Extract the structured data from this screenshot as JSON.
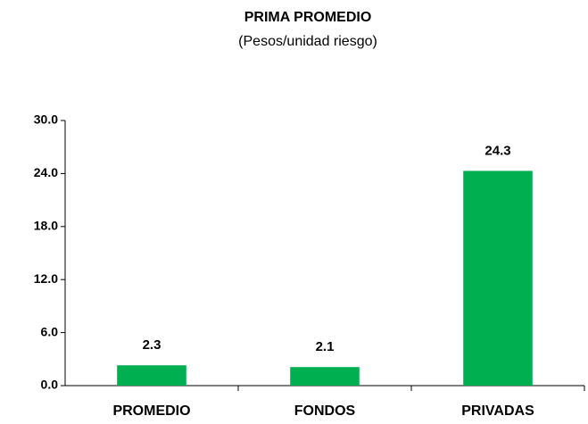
{
  "chart_data": {
    "type": "bar",
    "title": "PRIMA PROMEDIO",
    "subtitle": "(Pesos/unidad riesgo)",
    "categories": [
      "PROMEDIO",
      "FONDOS",
      "PRIVADAS"
    ],
    "values": [
      2.3,
      2.1,
      24.3
    ],
    "color": "#00b050",
    "ylim": [
      0,
      30
    ],
    "yticks": [
      {
        "value": 0,
        "label": "0.0"
      },
      {
        "value": 6,
        "label": "6.0"
      },
      {
        "value": 12,
        "label": "12.0"
      },
      {
        "value": 18,
        "label": "18.0"
      },
      {
        "value": 24,
        "label": "24.0"
      },
      {
        "value": 30,
        "label": "30.0"
      }
    ],
    "grid": false
  }
}
